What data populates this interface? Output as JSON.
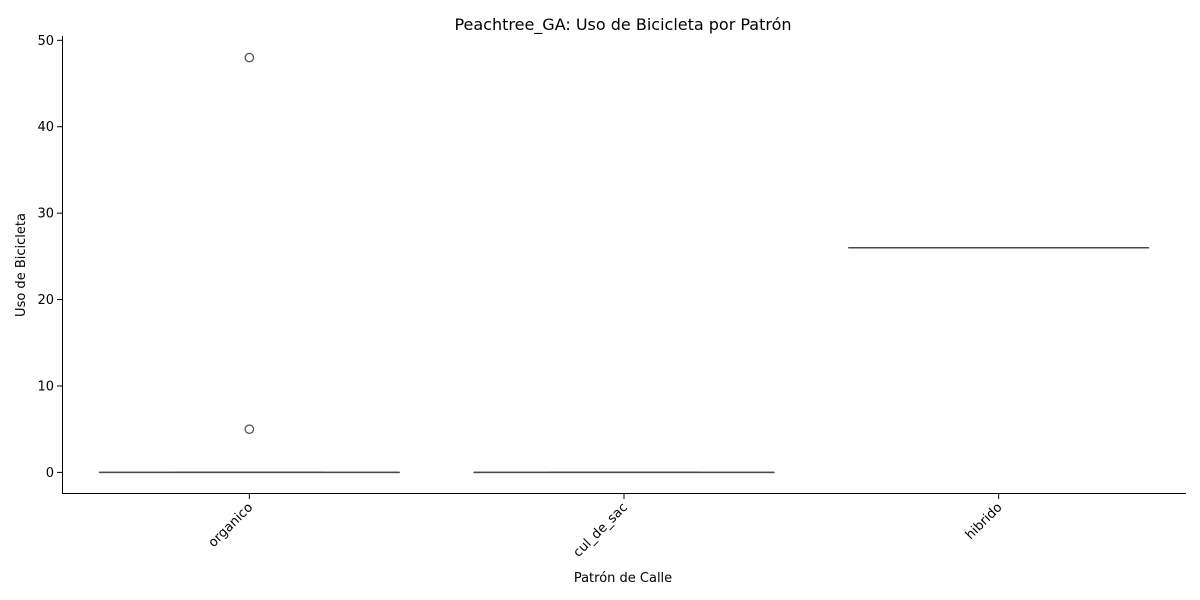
{
  "chart_data": {
    "type": "box",
    "title": "Peachtree_GA: Uso de Bicicleta por Patrón",
    "xlabel": "Patrón de Calle",
    "ylabel": "Uso de Bicicleta",
    "categories": [
      "organico",
      "cul_de_sac",
      "hibrido"
    ],
    "boxes": [
      {
        "category": "organico",
        "whisker_low": 0,
        "q1": 0,
        "median": 0,
        "q3": 0,
        "whisker_high": 0,
        "outliers": [
          5,
          48
        ]
      },
      {
        "category": "cul_de_sac",
        "whisker_low": 0,
        "q1": 0,
        "median": 0,
        "q3": 0,
        "whisker_high": 0,
        "outliers": []
      },
      {
        "category": "hibrido",
        "whisker_low": 26,
        "q1": 26,
        "median": 26,
        "q3": 26,
        "whisker_high": 26,
        "outliers": []
      }
    ],
    "yticks": [
      0,
      10,
      20,
      30,
      40,
      50
    ],
    "ylim": [
      -2.5,
      50.5
    ],
    "xtick_rotation_deg": 45,
    "grid": false,
    "legend": "none",
    "box_color": "#ffffff",
    "line_color": "#4a4a4a"
  }
}
